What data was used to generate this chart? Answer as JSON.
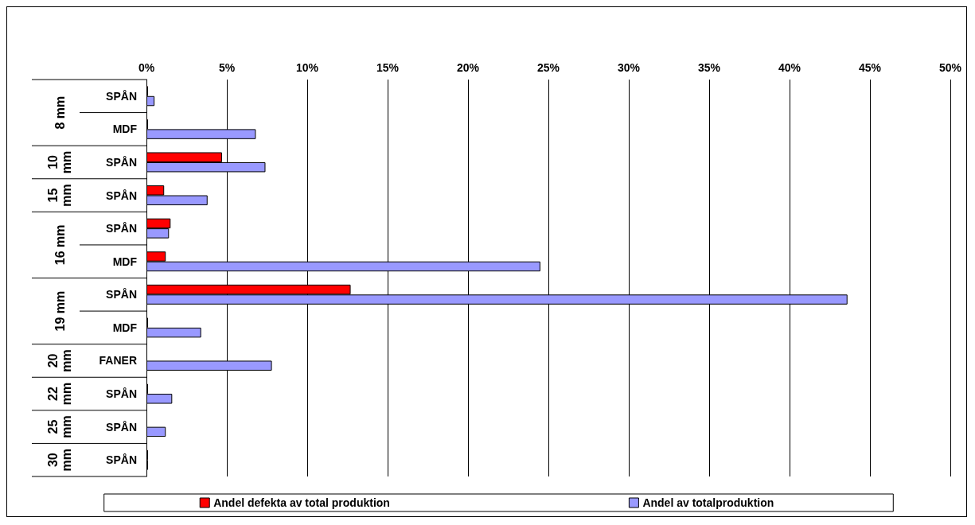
{
  "chart_data": {
    "type": "bar",
    "orientation": "horizontal",
    "categories": [
      "SPÅN",
      "MDF",
      "SPÅN",
      "SPÅN",
      "SPÅN",
      "MDF",
      "SPÅN",
      "MDF",
      "FANER",
      "SPÅN",
      "SPÅN",
      "SPÅN"
    ],
    "annotations": [
      "8 mm",
      "10 mm",
      "15 mm",
      "16 mm",
      "19 mm",
      "20 mm",
      "22 mm",
      "25 mm",
      "30 mm"
    ],
    "series": [
      {
        "name": "Andel defekta av total produktion",
        "color": "#ff0000",
        "values": [
          0.1,
          0.1,
          4.7,
          1.1,
          1.5,
          1.2,
          12.7,
          0.1,
          0,
          0.1,
          0,
          0.1
        ]
      },
      {
        "name": "Andel av totalproduktion",
        "color": "#9999ff",
        "values": [
          0.5,
          6.8,
          7.4,
          3.8,
          1.4,
          24.5,
          43.6,
          3.4,
          7.8,
          1.6,
          1.2,
          0.1
        ]
      }
    ],
    "xlim": [
      0,
      50
    ],
    "xticks": [
      {
        "value": 0,
        "label": "0%"
      },
      {
        "value": 5,
        "label": "5%"
      },
      {
        "value": 10,
        "label": "10%"
      },
      {
        "value": 15,
        "label": "15%"
      },
      {
        "value": 20,
        "label": "20%"
      },
      {
        "value": 25,
        "label": "25%"
      },
      {
        "value": 30,
        "label": "30%"
      },
      {
        "value": 35,
        "label": "35%"
      },
      {
        "value": 40,
        "label": "40%"
      },
      {
        "value": 45,
        "label": "45%"
      },
      {
        "value": 50,
        "label": "50%"
      }
    ],
    "grid": "x",
    "legend": "bottom"
  }
}
